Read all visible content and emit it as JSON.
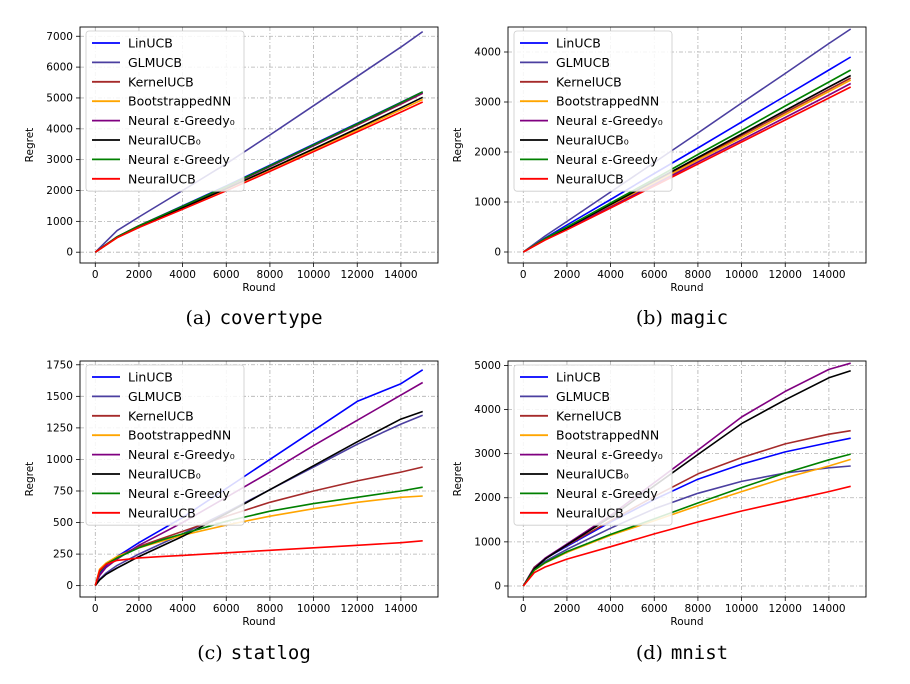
{
  "chart_data": [
    {
      "type": "line",
      "caption_letter": "(a)",
      "caption_name": "covertype",
      "xlabel": "Round",
      "ylabel": "Regret",
      "xlim": [
        -700,
        15700
      ],
      "ylim": [
        -350,
        7300
      ],
      "xticks": [
        0,
        2000,
        4000,
        6000,
        8000,
        10000,
        12000,
        14000
      ],
      "xtick_labels": [
        "0",
        "2000",
        "4000",
        "6000",
        "8000",
        "10000",
        "12000",
        "14000"
      ],
      "yticks": [
        0,
        1000,
        2000,
        3000,
        4000,
        5000,
        6000,
        7000
      ],
      "ytick_labels": [
        "0",
        "1000",
        "2000",
        "3000",
        "4000",
        "5000",
        "6000",
        "7000"
      ],
      "grid": true,
      "legend_position": "top-left",
      "x": [
        0,
        1000,
        2000,
        4000,
        6000,
        8000,
        10000,
        12000,
        14000,
        15000
      ],
      "series": [
        {
          "name": "LinUCB",
          "color": "#0000ff",
          "values": [
            0,
            500,
            860,
            1500,
            2150,
            2820,
            3500,
            4180,
            4860,
            5200
          ]
        },
        {
          "name": "GLMUCB",
          "color": "#4b3fa0",
          "values": [
            0,
            700,
            1140,
            2000,
            2870,
            3800,
            4750,
            5700,
            6650,
            7150
          ]
        },
        {
          "name": "KernelUCB",
          "color": "#a52a2a",
          "values": [
            0,
            500,
            860,
            1480,
            2110,
            2770,
            3450,
            4120,
            4800,
            5150
          ]
        },
        {
          "name": "BootstrappedNN",
          "color": "#ffa500",
          "values": [
            0,
            470,
            820,
            1430,
            2050,
            2680,
            3320,
            3960,
            4620,
            4950
          ]
        },
        {
          "name": "Neural ε-Greedy₀",
          "color": "#800080",
          "values": [
            0,
            490,
            850,
            1480,
            2120,
            2780,
            3460,
            4140,
            4820,
            5160
          ]
        },
        {
          "name": "NeuralUCB₀",
          "color": "#000000",
          "values": [
            0,
            480,
            830,
            1440,
            2060,
            2700,
            3350,
            4010,
            4680,
            5020
          ]
        },
        {
          "name": "Neural ε-Greedy",
          "color": "#008000",
          "values": [
            0,
            495,
            855,
            1490,
            2130,
            2800,
            3480,
            4160,
            4850,
            5200
          ]
        },
        {
          "name": "NeuralUCB",
          "color": "#ff0000",
          "values": [
            0,
            470,
            800,
            1390,
            1990,
            2620,
            3260,
            3900,
            4540,
            4870
          ]
        }
      ]
    },
    {
      "type": "line",
      "caption_letter": "(b)",
      "caption_name": "magic",
      "xlabel": "Round",
      "ylabel": "Regret",
      "xlim": [
        -700,
        15700
      ],
      "ylim": [
        -220,
        4500
      ],
      "xticks": [
        0,
        2000,
        4000,
        6000,
        8000,
        10000,
        12000,
        14000
      ],
      "xtick_labels": [
        "0",
        "2000",
        "4000",
        "6000",
        "8000",
        "10000",
        "12000",
        "14000"
      ],
      "yticks": [
        0,
        1000,
        2000,
        3000,
        4000
      ],
      "ytick_labels": [
        "0",
        "1000",
        "2000",
        "3000",
        "4000"
      ],
      "grid": true,
      "legend_position": "top-left",
      "x": [
        0,
        1000,
        2000,
        4000,
        6000,
        8000,
        10000,
        12000,
        14000,
        15000
      ],
      "series": [
        {
          "name": "LinUCB",
          "color": "#0000ff",
          "values": [
            0,
            280,
            540,
            1050,
            1570,
            2080,
            2600,
            3120,
            3640,
            3900
          ]
        },
        {
          "name": "GLMUCB",
          "color": "#4b3fa0",
          "values": [
            0,
            320,
            610,
            1200,
            1790,
            2380,
            2980,
            3570,
            4170,
            4460
          ]
        },
        {
          "name": "KernelUCB",
          "color": "#a52a2a",
          "values": [
            0,
            260,
            480,
            940,
            1400,
            1860,
            2330,
            2790,
            3250,
            3480
          ]
        },
        {
          "name": "BootstrappedNN",
          "color": "#ffa500",
          "values": [
            0,
            255,
            470,
            920,
            1380,
            1840,
            2290,
            2750,
            3210,
            3440
          ]
        },
        {
          "name": "Neural ε-Greedy₀",
          "color": "#800080",
          "values": [
            0,
            245,
            460,
            900,
            1350,
            1800,
            2240,
            2690,
            3140,
            3370
          ]
        },
        {
          "name": "NeuralUCB₀",
          "color": "#000000",
          "values": [
            0,
            260,
            480,
            950,
            1420,
            1890,
            2360,
            2830,
            3300,
            3530
          ]
        },
        {
          "name": "Neural ε-Greedy",
          "color": "#008000",
          "values": [
            0,
            270,
            500,
            980,
            1460,
            1950,
            2430,
            2920,
            3400,
            3640
          ]
        },
        {
          "name": "NeuralUCB",
          "color": "#ff0000",
          "values": [
            0,
            240,
            445,
            880,
            1320,
            1760,
            2200,
            2640,
            3080,
            3300
          ]
        }
      ]
    },
    {
      "type": "line",
      "caption_letter": "(c)",
      "caption_name": "statlog",
      "xlabel": "Round",
      "ylabel": "Regret",
      "xlim": [
        -700,
        15700
      ],
      "ylim": [
        -90,
        1780
      ],
      "xticks": [
        0,
        2000,
        4000,
        6000,
        8000,
        10000,
        12000,
        14000
      ],
      "xtick_labels": [
        "0",
        "2000",
        "4000",
        "6000",
        "8000",
        "10000",
        "12000",
        "14000"
      ],
      "yticks": [
        0,
        250,
        500,
        750,
        1000,
        1250,
        1500,
        1750
      ],
      "ytick_labels": [
        "0",
        "250",
        "500",
        "750",
        "1000",
        "1250",
        "1500",
        "1750"
      ],
      "grid": true,
      "legend_position": "top-left",
      "x": [
        0,
        200,
        500,
        1000,
        2000,
        3000,
        4000,
        6000,
        8000,
        10000,
        12000,
        14000,
        15000
      ],
      "series": [
        {
          "name": "LinUCB",
          "color": "#0000ff",
          "values": [
            0,
            90,
            160,
            230,
            340,
            440,
            540,
            770,
            1000,
            1230,
            1460,
            1600,
            1710
          ]
        },
        {
          "name": "GLMUCB",
          "color": "#4b3fa0",
          "values": [
            0,
            50,
            100,
            160,
            250,
            330,
            410,
            580,
            760,
            940,
            1120,
            1280,
            1350
          ]
        },
        {
          "name": "KernelUCB",
          "color": "#a52a2a",
          "values": [
            0,
            110,
            170,
            230,
            310,
            370,
            430,
            550,
            660,
            750,
            830,
            900,
            940
          ]
        },
        {
          "name": "BootstrappedNN",
          "color": "#ffa500",
          "values": [
            0,
            130,
            180,
            230,
            300,
            350,
            400,
            480,
            550,
            610,
            660,
            700,
            710
          ]
        },
        {
          "name": "Neural ε-Greedy₀",
          "color": "#800080",
          "values": [
            0,
            80,
            145,
            210,
            320,
            410,
            500,
            700,
            900,
            1110,
            1310,
            1510,
            1610
          ]
        },
        {
          "name": "NeuralUCB₀",
          "color": "#000000",
          "values": [
            0,
            45,
            90,
            140,
            230,
            310,
            390,
            570,
            760,
            950,
            1140,
            1320,
            1380
          ]
        },
        {
          "name": "Neural ε-Greedy",
          "color": "#008000",
          "values": [
            0,
            110,
            170,
            220,
            300,
            360,
            410,
            510,
            590,
            650,
            700,
            750,
            780
          ]
        },
        {
          "name": "NeuralUCB",
          "color": "#ff0000",
          "values": [
            0,
            120,
            170,
            200,
            220,
            230,
            240,
            260,
            280,
            300,
            320,
            340,
            355
          ]
        }
      ]
    },
    {
      "type": "line",
      "caption_letter": "(d)",
      "caption_name": "mnist",
      "xlabel": "Round",
      "ylabel": "Regret",
      "xlim": [
        -700,
        15700
      ],
      "ylim": [
        -250,
        5100
      ],
      "xticks": [
        0,
        2000,
        4000,
        6000,
        8000,
        10000,
        12000,
        14000
      ],
      "xtick_labels": [
        "0",
        "2000",
        "4000",
        "6000",
        "8000",
        "10000",
        "12000",
        "14000"
      ],
      "yticks": [
        0,
        1000,
        2000,
        3000,
        4000,
        5000
      ],
      "ytick_labels": [
        "0",
        "1000",
        "2000",
        "3000",
        "4000",
        "5000"
      ],
      "grid": true,
      "legend_position": "top-left",
      "x": [
        0,
        500,
        1000,
        2000,
        4000,
        6000,
        8000,
        10000,
        12000,
        14000,
        15000
      ],
      "series": [
        {
          "name": "LinUCB",
          "color": "#0000ff",
          "values": [
            0,
            420,
            620,
            900,
            1450,
            1960,
            2420,
            2760,
            3040,
            3250,
            3350
          ]
        },
        {
          "name": "GLMUCB",
          "color": "#4b3fa0",
          "values": [
            0,
            380,
            560,
            830,
            1310,
            1750,
            2100,
            2370,
            2560,
            2680,
            2720
          ]
        },
        {
          "name": "KernelUCB",
          "color": "#a52a2a",
          "values": [
            0,
            420,
            620,
            920,
            1480,
            2030,
            2540,
            2910,
            3220,
            3440,
            3520
          ]
        },
        {
          "name": "BootstrappedNN",
          "color": "#ffa500",
          "values": [
            0,
            350,
            520,
            760,
            1150,
            1480,
            1820,
            2140,
            2450,
            2720,
            2870
          ]
        },
        {
          "name": "Neural ε-Greedy₀",
          "color": "#800080",
          "values": [
            0,
            400,
            630,
            950,
            1600,
            2340,
            3080,
            3830,
            4410,
            4910,
            5050
          ]
        },
        {
          "name": "NeuralUCB₀",
          "color": "#000000",
          "values": [
            0,
            390,
            610,
            930,
            1560,
            2270,
            2980,
            3680,
            4220,
            4720,
            4880
          ]
        },
        {
          "name": "Neural ε-Greedy",
          "color": "#008000",
          "values": [
            0,
            360,
            530,
            780,
            1170,
            1520,
            1880,
            2230,
            2560,
            2860,
            2990
          ]
        },
        {
          "name": "NeuralUCB",
          "color": "#ff0000",
          "values": [
            0,
            300,
            430,
            610,
            890,
            1180,
            1450,
            1700,
            1920,
            2140,
            2260
          ]
        }
      ]
    }
  ]
}
